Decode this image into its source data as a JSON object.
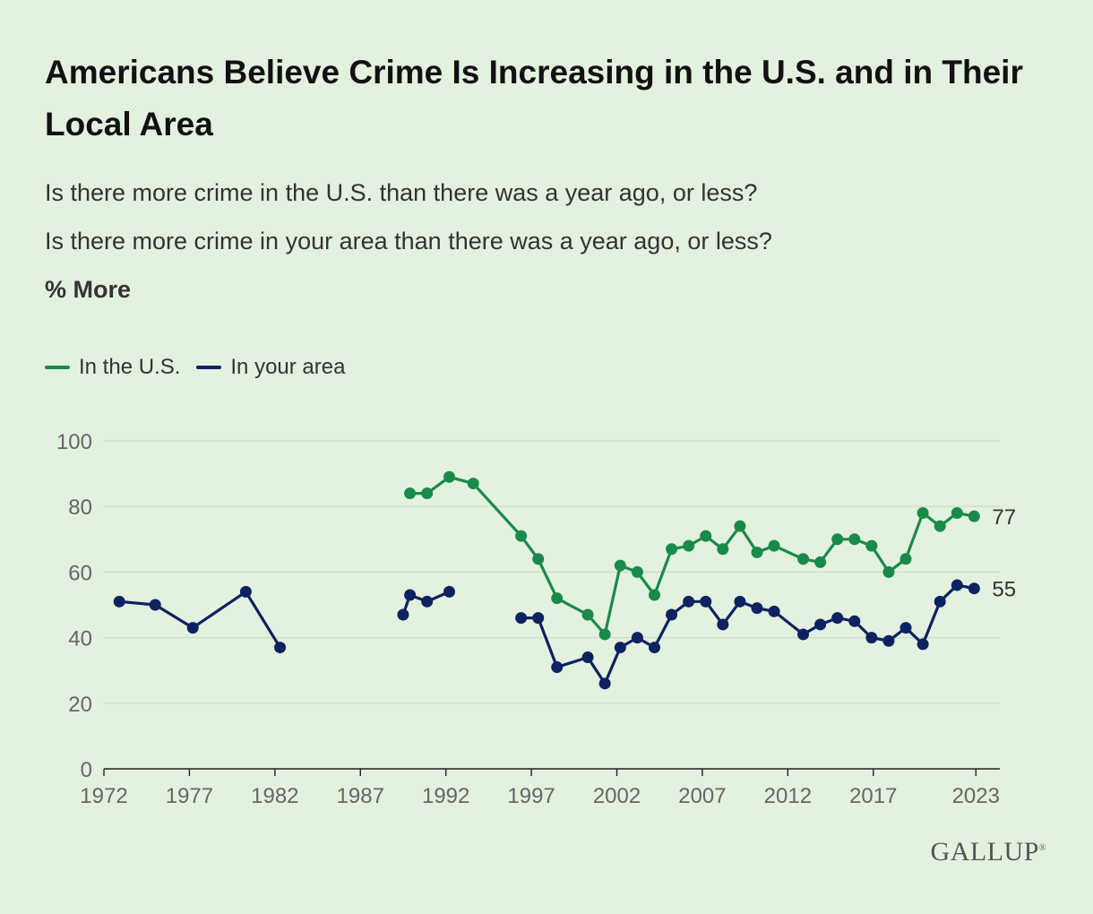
{
  "title": "Americans Believe Crime Is Increasing in the U.S. and in Their Local Area",
  "subtitle_1": "Is there more crime in the U.S. than there was a year ago, or less?",
  "subtitle_2": "Is there more crime in your area than there was a year ago, or less?",
  "measure": "% More",
  "brand": "GALLUP",
  "colors": {
    "us": "#1a8a4a",
    "area": "#0d2260",
    "grid": "#c9dcc4",
    "axis": "#222222",
    "tick": "#666666"
  },
  "chart_data": {
    "type": "line",
    "title": "Americans Believe Crime Is Increasing in the U.S. and in Their Local Area",
    "ylabel": "% More",
    "xlim": [
      1972,
      2024
    ],
    "ylim": [
      0,
      100
    ],
    "yticks": [
      0,
      20,
      40,
      60,
      80,
      100
    ],
    "xticks": [
      "1972",
      "1977",
      "1982",
      "1987",
      "1992",
      "1997",
      "2002",
      "2007",
      "2012",
      "2017",
      "2023"
    ],
    "series": [
      {
        "name": "In the U.S.",
        "color_key": "us",
        "end_label": "77",
        "segments": [
          [
            [
              1989.9,
              84
            ],
            [
              1990.9,
              84
            ],
            [
              1992.2,
              89
            ],
            [
              1993.6,
              87
            ],
            [
              1996.4,
              71
            ],
            [
              1997.4,
              64
            ],
            [
              1998.5,
              52
            ],
            [
              2000.3,
              47
            ],
            [
              2001.3,
              41
            ],
            [
              2002.2,
              62
            ],
            [
              2003.2,
              60
            ],
            [
              2004.2,
              53
            ],
            [
              2005.2,
              67
            ],
            [
              2006.2,
              68
            ],
            [
              2007.2,
              71
            ],
            [
              2008.2,
              67
            ],
            [
              2009.2,
              74
            ],
            [
              2010.2,
              66
            ],
            [
              2011.2,
              68
            ],
            [
              2012.9,
              64
            ],
            [
              2013.9,
              63
            ],
            [
              2014.9,
              70
            ],
            [
              2015.9,
              70
            ],
            [
              2016.9,
              68
            ],
            [
              2017.9,
              60
            ],
            [
              2018.9,
              64
            ],
            [
              2019.9,
              78
            ],
            [
              2020.9,
              74
            ],
            [
              2021.9,
              78
            ],
            [
              2022.9,
              77
            ]
          ]
        ]
      },
      {
        "name": "In your area",
        "color_key": "area",
        "end_label": "55",
        "segments": [
          [
            [
              1972.9,
              51
            ],
            [
              1975.0,
              50
            ],
            [
              1977.2,
              43
            ],
            [
              1980.3,
              54
            ],
            [
              1982.3,
              37
            ]
          ],
          [
            [
              1989.5,
              47
            ],
            [
              1989.9,
              53
            ],
            [
              1990.9,
              51
            ],
            [
              1992.2,
              54
            ]
          ],
          [
            [
              1996.4,
              46
            ],
            [
              1997.4,
              46
            ],
            [
              1998.5,
              31
            ],
            [
              2000.3,
              34
            ],
            [
              2001.3,
              26
            ],
            [
              2002.2,
              37
            ],
            [
              2003.2,
              40
            ],
            [
              2004.2,
              37
            ],
            [
              2005.2,
              47
            ],
            [
              2006.2,
              51
            ],
            [
              2007.2,
              51
            ],
            [
              2008.2,
              44
            ],
            [
              2009.2,
              51
            ],
            [
              2010.2,
              49
            ],
            [
              2011.2,
              48
            ],
            [
              2012.9,
              41
            ],
            [
              2013.9,
              44
            ],
            [
              2014.9,
              46
            ],
            [
              2015.9,
              45
            ],
            [
              2016.9,
              40
            ],
            [
              2017.9,
              39
            ],
            [
              2018.9,
              43
            ],
            [
              2019.9,
              38
            ],
            [
              2020.9,
              51
            ],
            [
              2021.9,
              56
            ],
            [
              2022.9,
              55
            ]
          ]
        ]
      }
    ],
    "legend_position": "top-left"
  }
}
